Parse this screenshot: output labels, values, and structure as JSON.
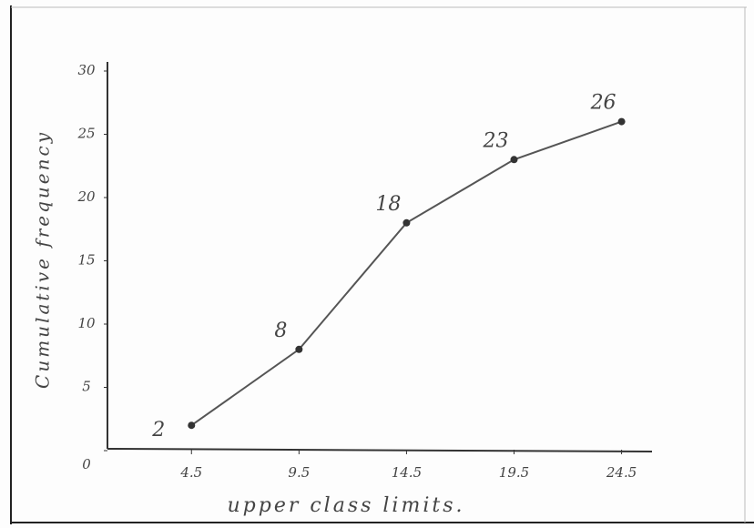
{
  "chart_data": {
    "type": "line",
    "x_label": "upper class limits.",
    "y_label": "Cumulative frequency",
    "x": [
      4.5,
      9.5,
      14.5,
      19.5,
      24.5
    ],
    "values": [
      2,
      8,
      18,
      23,
      26
    ],
    "color": "#555555",
    "xlim": [
      0,
      26
    ],
    "xticks": [
      4.5,
      9.5,
      14.5,
      19.5,
      24.5
    ],
    "ylim": [
      0,
      30
    ],
    "yticks": [
      0,
      5,
      10,
      15,
      20,
      25,
      30
    ]
  }
}
